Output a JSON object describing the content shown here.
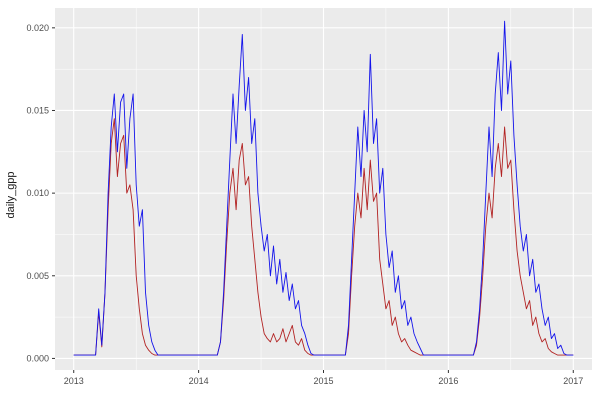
{
  "chart_data": {
    "type": "line",
    "title": "",
    "xlabel": "",
    "ylabel": "daily_gpp",
    "panel_bg": "#ebebeb",
    "grid_color": "#ffffff",
    "tick_color": "#333333",
    "tick_label_color": "#4d4d4d",
    "legend": "none",
    "xlim": [
      2013,
      2017
    ],
    "ylim": [
      0,
      0.0204
    ],
    "x_domain": [
      2012.85,
      2017.15
    ],
    "y_domain": [
      -0.0007,
      0.0212
    ],
    "x_ticks": [
      2013,
      2014,
      2015,
      2016,
      2017
    ],
    "x_tick_labels": [
      "2013",
      "2014",
      "2015",
      "2016",
      "2017"
    ],
    "x_minor": [
      2013.5,
      2014.5,
      2015.5,
      2016.5
    ],
    "y_ticks": [
      0,
      0.005,
      0.01,
      0.015,
      0.02
    ],
    "y_tick_labels": [
      "0.000",
      "0.005",
      "0.010",
      "0.015",
      "0.020"
    ],
    "y_minor": [
      0.0025,
      0.0075,
      0.0125,
      0.0175
    ],
    "x_start": 2013.0,
    "x_step": 0.025,
    "series": [
      {
        "name": "red",
        "color": "#B22222",
        "values": [
          0.0002,
          0.0002,
          0.0002,
          0.0002,
          0.0002,
          0.0002,
          0.0002,
          0.0002,
          0.0028,
          0.0007,
          0.004,
          0.009,
          0.013,
          0.0145,
          0.011,
          0.013,
          0.0135,
          0.01,
          0.0105,
          0.009,
          0.005,
          0.003,
          0.0015,
          0.0008,
          0.0005,
          0.0003,
          0.0002,
          0.0002,
          0.0002,
          0.0002,
          0.0002,
          0.0002,
          0.0002,
          0.0002,
          0.0002,
          0.0002,
          0.0002,
          0.0002,
          0.0002,
          0.0002,
          0.0002,
          0.0002,
          0.0002,
          0.0002,
          0.0002,
          0.0002,
          0.0002,
          0.001,
          0.0035,
          0.007,
          0.01,
          0.0115,
          0.009,
          0.012,
          0.013,
          0.0105,
          0.011,
          0.008,
          0.006,
          0.004,
          0.0025,
          0.0015,
          0.0012,
          0.001,
          0.0015,
          0.001,
          0.0012,
          0.0018,
          0.001,
          0.0015,
          0.002,
          0.001,
          0.0008,
          0.0012,
          0.0005,
          0.0003,
          0.0002,
          0.0002,
          0.0002,
          0.0002,
          0.0002,
          0.0002,
          0.0002,
          0.0002,
          0.0002,
          0.0002,
          0.0002,
          0.0002,
          0.0015,
          0.005,
          0.008,
          0.01,
          0.0085,
          0.0115,
          0.009,
          0.012,
          0.0095,
          0.01,
          0.006,
          0.0045,
          0.003,
          0.0035,
          0.002,
          0.0025,
          0.0015,
          0.001,
          0.0012,
          0.0008,
          0.0005,
          0.0004,
          0.0003,
          0.0002,
          0.0002,
          0.0002,
          0.0002,
          0.0002,
          0.0002,
          0.0002,
          0.0002,
          0.0002,
          0.0002,
          0.0002,
          0.0002,
          0.0002,
          0.0002,
          0.0002,
          0.0002,
          0.0002,
          0.0002,
          0.0008,
          0.0025,
          0.005,
          0.008,
          0.01,
          0.0085,
          0.0115,
          0.013,
          0.011,
          0.014,
          0.0115,
          0.012,
          0.009,
          0.0065,
          0.005,
          0.004,
          0.003,
          0.0035,
          0.002,
          0.0025,
          0.0015,
          0.001,
          0.0012,
          0.0006,
          0.0004,
          0.0003,
          0.0002,
          0.0002,
          0.0002,
          0.0002,
          0.0002,
          0.0002
        ]
      },
      {
        "name": "blue",
        "color": "#1414EB",
        "values": [
          0.0002,
          0.0002,
          0.0002,
          0.0002,
          0.0002,
          0.0002,
          0.0002,
          0.0002,
          0.003,
          0.0008,
          0.004,
          0.01,
          0.014,
          0.016,
          0.0125,
          0.0155,
          0.016,
          0.0115,
          0.0145,
          0.016,
          0.0105,
          0.008,
          0.009,
          0.004,
          0.002,
          0.001,
          0.0005,
          0.0002,
          0.0002,
          0.0002,
          0.0002,
          0.0002,
          0.0002,
          0.0002,
          0.0002,
          0.0002,
          0.0002,
          0.0002,
          0.0002,
          0.0002,
          0.0002,
          0.0002,
          0.0002,
          0.0002,
          0.0002,
          0.0002,
          0.0002,
          0.001,
          0.004,
          0.008,
          0.012,
          0.016,
          0.013,
          0.0165,
          0.0196,
          0.015,
          0.017,
          0.013,
          0.0145,
          0.01,
          0.008,
          0.0065,
          0.0075,
          0.005,
          0.0068,
          0.0045,
          0.006,
          0.004,
          0.0052,
          0.0035,
          0.0045,
          0.003,
          0.0035,
          0.002,
          0.0015,
          0.0008,
          0.0003,
          0.0002,
          0.0002,
          0.0002,
          0.0002,
          0.0002,
          0.0002,
          0.0002,
          0.0002,
          0.0002,
          0.0002,
          0.0002,
          0.002,
          0.006,
          0.01,
          0.014,
          0.011,
          0.015,
          0.0125,
          0.0184,
          0.013,
          0.0145,
          0.01,
          0.0115,
          0.0075,
          0.0055,
          0.0065,
          0.004,
          0.005,
          0.003,
          0.0035,
          0.002,
          0.0025,
          0.0015,
          0.001,
          0.0006,
          0.0002,
          0.0002,
          0.0002,
          0.0002,
          0.0002,
          0.0002,
          0.0002,
          0.0002,
          0.0002,
          0.0002,
          0.0002,
          0.0002,
          0.0002,
          0.0002,
          0.0002,
          0.0002,
          0.0002,
          0.001,
          0.003,
          0.006,
          0.01,
          0.014,
          0.011,
          0.016,
          0.0185,
          0.015,
          0.0204,
          0.016,
          0.018,
          0.0135,
          0.0105,
          0.008,
          0.0065,
          0.0075,
          0.005,
          0.006,
          0.004,
          0.0045,
          0.003,
          0.002,
          0.0025,
          0.0012,
          0.0015,
          0.0006,
          0.0008,
          0.0003,
          0.0002,
          0.0002,
          0.0002
        ]
      }
    ]
  }
}
